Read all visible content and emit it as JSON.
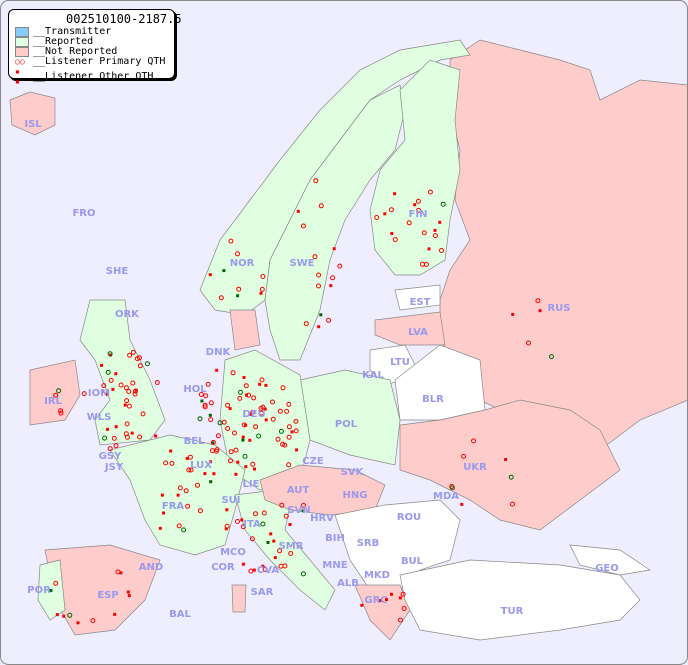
{
  "title": "002510100-2187.5",
  "legend": {
    "transmitter": "__Transmitter",
    "reported": "__Reported",
    "not_reported": "__Not Reported",
    "primary": "__Listener Primary QTH",
    "other": "__Listener Other QTH"
  },
  "colors": {
    "sea": "#eeeeff",
    "reported": "#e0ffe0",
    "not_reported": "#ffcccc",
    "transmitter": "#88ccff",
    "unknown": "#ffffff",
    "marker": "#ff0000",
    "marker_dark": "#006600",
    "label": "#9999ee"
  },
  "countries": [
    "ISL",
    "FRO",
    "SHE",
    "ORK",
    "NOR",
    "SWE",
    "FIN",
    "EST",
    "RUS",
    "LVA",
    "LTU",
    "KAL",
    "BLR",
    "DNK",
    "HOL",
    "IRL",
    "IOM",
    "WLS",
    "GSY",
    "JSY",
    "BEL",
    "LUX",
    "DEU",
    "POL",
    "CZE",
    "SVK",
    "UKR",
    "MDA",
    "FRA",
    "SUI",
    "LIE",
    "AUT",
    "HNG",
    "SVN",
    "HRV",
    "ROU",
    "BIH",
    "SRB",
    "BUL",
    "MNE",
    "MKD",
    "ALB",
    "GRC",
    "TUR",
    "GEO",
    "ITA",
    "SMR",
    "MCO",
    "COR",
    "CVA",
    "SAR",
    "AND",
    "POR",
    "ESP",
    "BAL"
  ]
}
